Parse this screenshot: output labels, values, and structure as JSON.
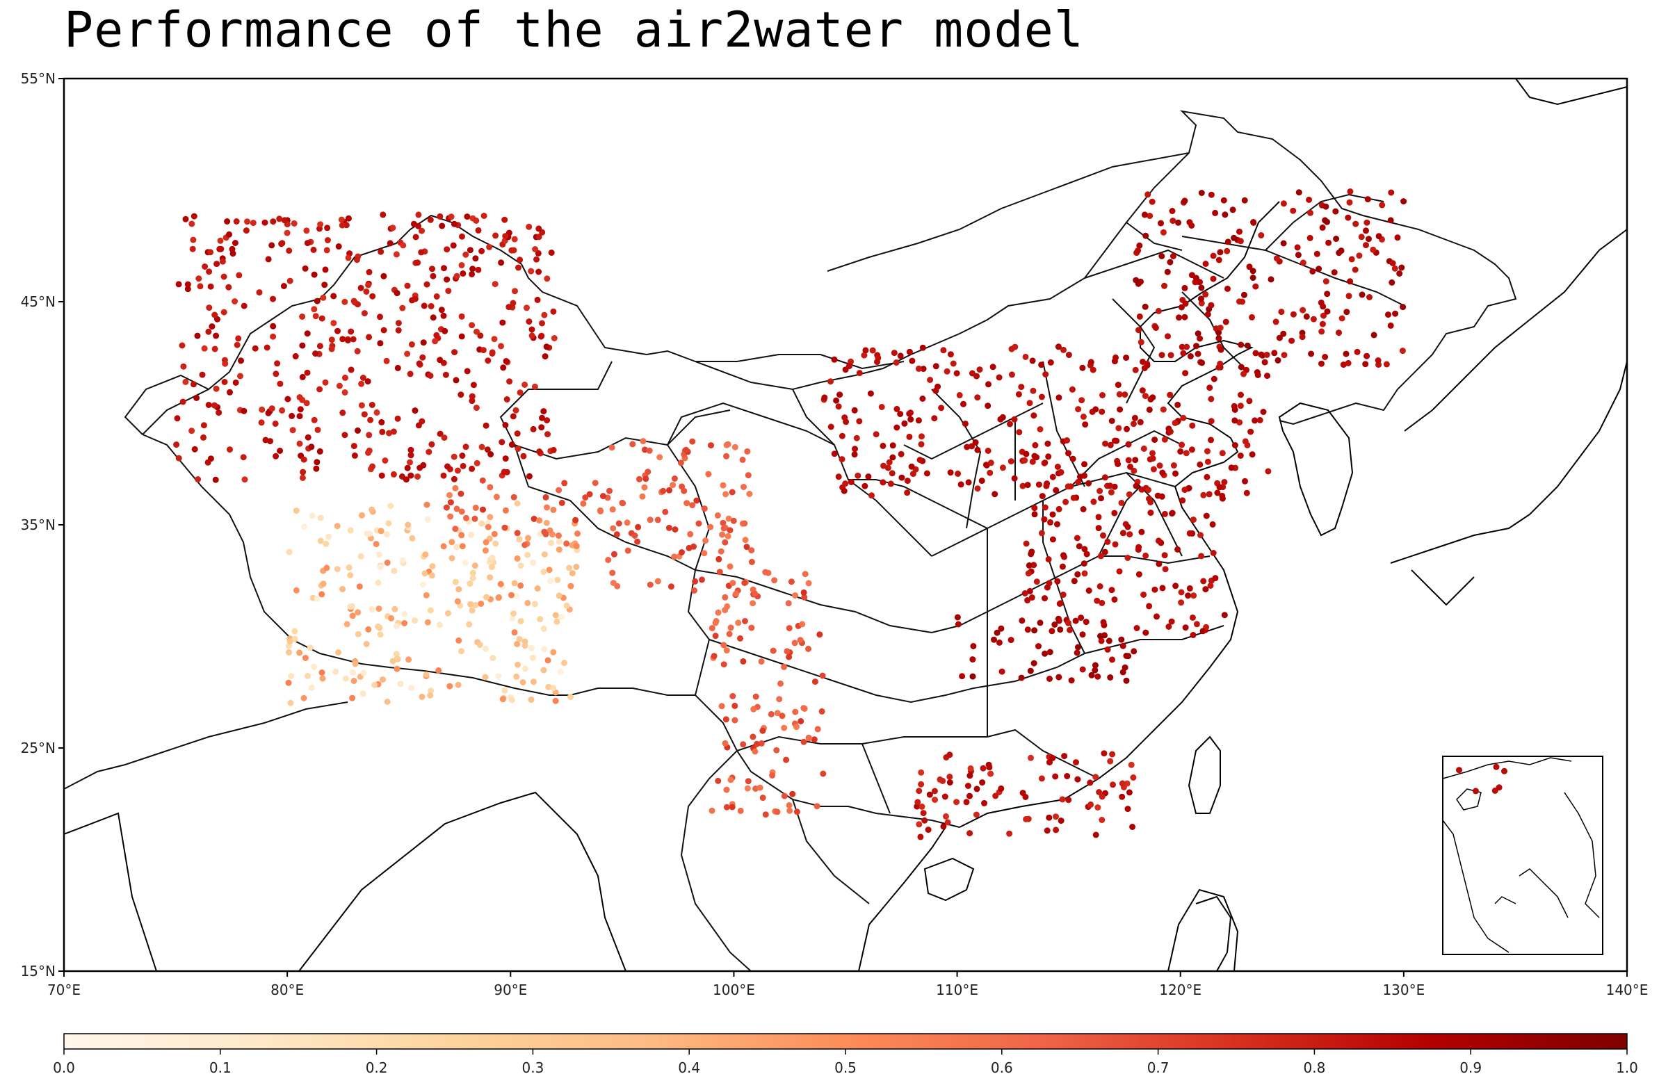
{
  "title": "Performance of the air2water model",
  "map": {
    "lon_range": [
      70,
      140
    ],
    "lat_range": [
      15,
      55
    ],
    "lon_ticks": [
      {
        "value": 70,
        "label": "70°E"
      },
      {
        "value": 80,
        "label": "80°E"
      },
      {
        "value": 90,
        "label": "90°E"
      },
      {
        "value": 100,
        "label": "100°E"
      },
      {
        "value": 110,
        "label": "110°E"
      },
      {
        "value": 120,
        "label": "120°E"
      },
      {
        "value": 130,
        "label": "130°E"
      },
      {
        "value": 140,
        "label": "140°E"
      }
    ],
    "lat_ticks": [
      {
        "value": 55,
        "label": "55°N"
      },
      {
        "value": 45,
        "label": "45°N"
      },
      {
        "value": 35,
        "label": "35°N"
      },
      {
        "value": 25,
        "label": "25°N"
      },
      {
        "value": 15,
        "label": "15°N"
      }
    ],
    "inset": "South China Sea"
  },
  "colorbar": {
    "colormap": "OrRd",
    "range": [
      0.0,
      1.0
    ],
    "ticks": [
      "0.0",
      "0.1",
      "0.2",
      "0.3",
      "0.4",
      "0.5",
      "0.6",
      "0.7",
      "0.8",
      "0.9",
      "1.0"
    ],
    "stops": [
      "#fff7ec",
      "#fee8c8",
      "#fdd49e",
      "#fdbb84",
      "#fc8d59",
      "#ef6548",
      "#d7301f",
      "#b30000",
      "#7f0000"
    ]
  },
  "chart_data": {
    "type": "scatter",
    "title": "Performance of the air2water model",
    "xlabel": "",
    "ylabel": "",
    "xlim": [
      70,
      140
    ],
    "ylim": [
      15,
      55
    ],
    "color_range": [
      0,
      1
    ],
    "clusters": [
      {
        "lon": [
          80,
          93
        ],
        "lat": [
          27,
          36
        ],
        "value_range": [
          0.05,
          0.55
        ]
      },
      {
        "lon": [
          87,
          94
        ],
        "lat": [
          34,
          37
        ],
        "value_range": [
          0.5,
          0.75
        ]
      },
      {
        "lon": [
          94,
          101
        ],
        "lat": [
          32,
          39
        ],
        "value_range": [
          0.55,
          0.75
        ]
      },
      {
        "lon": [
          99,
          104
        ],
        "lat": [
          22,
          33
        ],
        "value_range": [
          0.55,
          0.75
        ]
      },
      {
        "lon": [
          75,
          92
        ],
        "lat": [
          37,
          49
        ],
        "value_range": [
          0.75,
          0.9
        ]
      },
      {
        "lon": [
          104,
          124
        ],
        "lat": [
          36,
          43
        ],
        "value_range": [
          0.8,
          0.9
        ]
      },
      {
        "lon": [
          118,
          130
        ],
        "lat": [
          42,
          50
        ],
        "value_range": [
          0.8,
          0.95
        ]
      },
      {
        "lon": [
          110,
          118
        ],
        "lat": [
          28,
          31
        ],
        "value_range": [
          0.85,
          0.95
        ]
      },
      {
        "lon": [
          113,
          122
        ],
        "lat": [
          30,
          37
        ],
        "value_range": [
          0.8,
          0.9
        ]
      },
      {
        "lon": [
          108,
          118
        ],
        "lat": [
          21,
          25
        ],
        "value_range": [
          0.75,
          0.9
        ]
      }
    ]
  }
}
